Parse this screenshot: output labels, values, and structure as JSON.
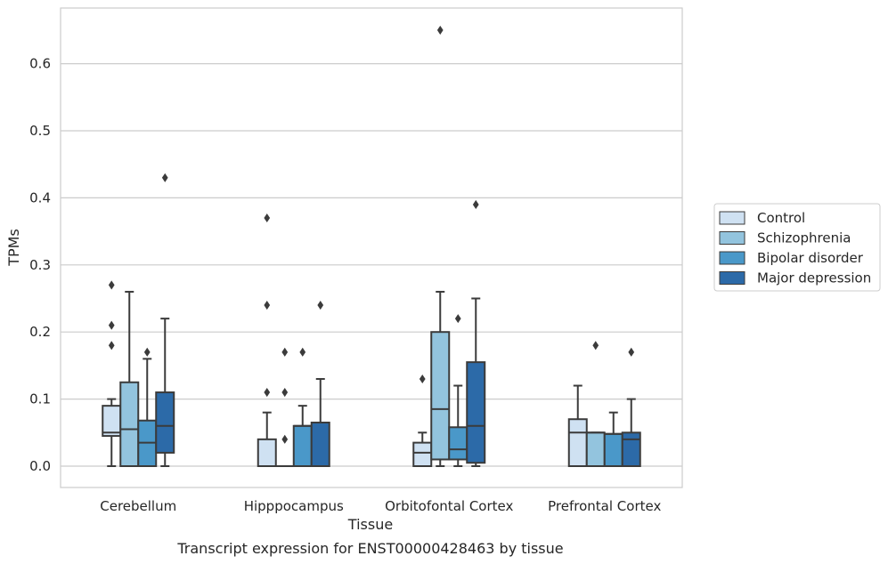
{
  "chart_data": {
    "type": "boxplot",
    "xlabel": "Tissue",
    "ylabel": "TPMs",
    "caption": "Transcript expression for ENST00000428463 by tissue",
    "categories": [
      "Cerebellum",
      "Hipppocampus",
      "Orbitofontal Cortex",
      "Prefrontal Cortex"
    ],
    "ylim": [
      -0.032,
      0.68
    ],
    "yticks": [
      0.0,
      0.1,
      0.2,
      0.3,
      0.4,
      0.5,
      0.6
    ],
    "ytick_labels": [
      "0.0",
      "0.1",
      "0.2",
      "0.3",
      "0.4",
      "0.5",
      "0.6"
    ],
    "grid": true,
    "legend_position": "right",
    "series": [
      {
        "name": "Control",
        "color": "#cfe1f2",
        "boxes": [
          {
            "whislo": 0.0,
            "q1": 0.045,
            "med": 0.05,
            "q3": 0.09,
            "whishi": 0.1,
            "fliers": [
              0.18,
              0.21,
              0.27
            ]
          },
          {
            "whislo": 0.0,
            "q1": 0.0,
            "med": 0.0,
            "q3": 0.04,
            "whishi": 0.08,
            "fliers": [
              0.11,
              0.24,
              0.37
            ]
          },
          {
            "whislo": 0.0,
            "q1": 0.0,
            "med": 0.02,
            "q3": 0.035,
            "whishi": 0.05,
            "fliers": [
              0.13
            ]
          },
          {
            "whislo": 0.0,
            "q1": 0.0,
            "med": 0.05,
            "q3": 0.07,
            "whishi": 0.12,
            "fliers": []
          }
        ]
      },
      {
        "name": "Schizophrenia",
        "color": "#93c4de",
        "boxes": [
          {
            "whislo": 0.0,
            "q1": 0.0,
            "med": 0.055,
            "q3": 0.125,
            "whishi": 0.26,
            "fliers": []
          },
          {
            "whislo": 0.0,
            "q1": 0.0,
            "med": 0.0,
            "q3": 0.0,
            "whishi": 0.0,
            "fliers": [
              0.04,
              0.11,
              0.17
            ]
          },
          {
            "whislo": 0.0,
            "q1": 0.01,
            "med": 0.085,
            "q3": 0.2,
            "whishi": 0.26,
            "fliers": [
              0.65
            ]
          },
          {
            "whislo": 0.0,
            "q1": 0.0,
            "med": 0.05,
            "q3": 0.05,
            "whishi": 0.05,
            "fliers": [
              0.18
            ]
          }
        ]
      },
      {
        "name": "Bipolar disorder",
        "color": "#4a98c9",
        "boxes": [
          {
            "whislo": 0.0,
            "q1": 0.0,
            "med": 0.035,
            "q3": 0.068,
            "whishi": 0.16,
            "fliers": [
              0.17
            ]
          },
          {
            "whislo": 0.0,
            "q1": 0.0,
            "med": 0.06,
            "q3": 0.06,
            "whishi": 0.09,
            "fliers": [
              0.17
            ]
          },
          {
            "whislo": 0.0,
            "q1": 0.01,
            "med": 0.025,
            "q3": 0.058,
            "whishi": 0.12,
            "fliers": [
              0.22
            ]
          },
          {
            "whislo": 0.0,
            "q1": 0.0,
            "med": 0.048,
            "q3": 0.048,
            "whishi": 0.08,
            "fliers": []
          }
        ]
      },
      {
        "name": "Major depression",
        "color": "#2c6aa8",
        "boxes": [
          {
            "whislo": 0.0,
            "q1": 0.02,
            "med": 0.06,
            "q3": 0.11,
            "whishi": 0.22,
            "fliers": [
              0.43
            ]
          },
          {
            "whislo": 0.0,
            "q1": 0.0,
            "med": 0.065,
            "q3": 0.065,
            "whishi": 0.13,
            "fliers": [
              0.24
            ]
          },
          {
            "whislo": 0.0,
            "q1": 0.005,
            "med": 0.06,
            "q3": 0.155,
            "whishi": 0.25,
            "fliers": [
              0.39
            ]
          },
          {
            "whislo": 0.0,
            "q1": 0.0,
            "med": 0.04,
            "q3": 0.05,
            "whishi": 0.1,
            "fliers": [
              0.17
            ]
          }
        ]
      }
    ]
  }
}
